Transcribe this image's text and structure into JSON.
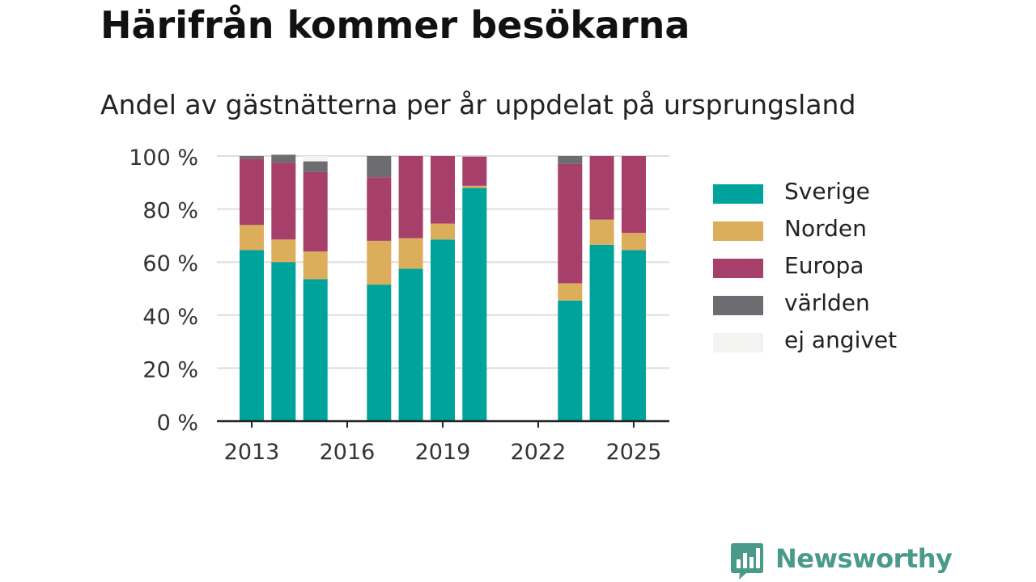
{
  "title": "Härifrån kommer besökarna",
  "subtitle": "Andel av gästnätterna per år uppdelat på ursprungsland",
  "brand": {
    "name": "Newsworthy",
    "icon": "newsworthy-chart-bubble-icon"
  },
  "chart_data": {
    "type": "bar",
    "stacked": true,
    "years": [
      2013,
      2014,
      2015,
      2016,
      2017,
      2018,
      2019,
      2020,
      2021,
      2022,
      2023,
      2024,
      2025
    ],
    "x_ticks": [
      "2013",
      "2016",
      "2019",
      "2022",
      "2025"
    ],
    "y_ticks": [
      "0 %",
      "20 %",
      "40 %",
      "60 %",
      "80 %",
      "100 %"
    ],
    "ylim": [
      0,
      100
    ],
    "grid": true,
    "legend_position": "right",
    "series": [
      {
        "name": "Sverige",
        "color": "#00a39b",
        "values": [
          64.5,
          60,
          53.5,
          null,
          51.5,
          57.5,
          68.5,
          88,
          null,
          null,
          45.5,
          66.5,
          64.5
        ]
      },
      {
        "name": "Norden",
        "color": "#dcad5a",
        "values": [
          9.5,
          8.5,
          10.5,
          null,
          16.5,
          11.5,
          6,
          0.8,
          null,
          null,
          6.5,
          9.5,
          6.5
        ]
      },
      {
        "name": "Europa",
        "color": "#a63f69",
        "values": [
          25,
          29,
          30,
          null,
          24,
          31,
          25.5,
          11,
          null,
          null,
          45,
          24,
          29
        ]
      },
      {
        "name": "världen",
        "color": "#6d6c71",
        "values": [
          1,
          3,
          4,
          null,
          8,
          0,
          0,
          0,
          null,
          null,
          3,
          0,
          0
        ]
      },
      {
        "name": "ej angivet",
        "color": "#f3f3f1",
        "values": [
          0,
          0,
          2,
          null,
          0,
          0,
          0,
          0,
          null,
          null,
          0,
          0,
          0
        ]
      }
    ]
  }
}
